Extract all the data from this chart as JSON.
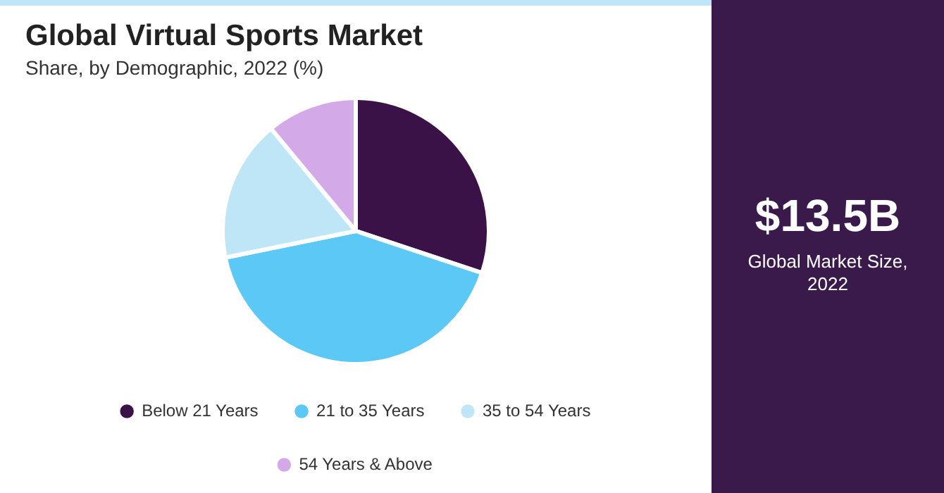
{
  "chart_data": {
    "type": "pie",
    "title": "Global Virtual Sports Market",
    "subtitle": "Share, by Demographic, 2022 (%)",
    "categories": [
      "Below 21 Years",
      "21 to 35 Years",
      "35 to 54 Years",
      "54 Years & Above"
    ],
    "values": [
      30.1,
      41.7,
      17.2,
      11.0
    ],
    "colors": [
      "#3b1248",
      "#5bc8f5",
      "#bfe6f7",
      "#d3a9e8"
    ],
    "legend": "bottom",
    "annotations": [
      "$13.5B",
      "Global Market Size, 2022"
    ]
  }
}
